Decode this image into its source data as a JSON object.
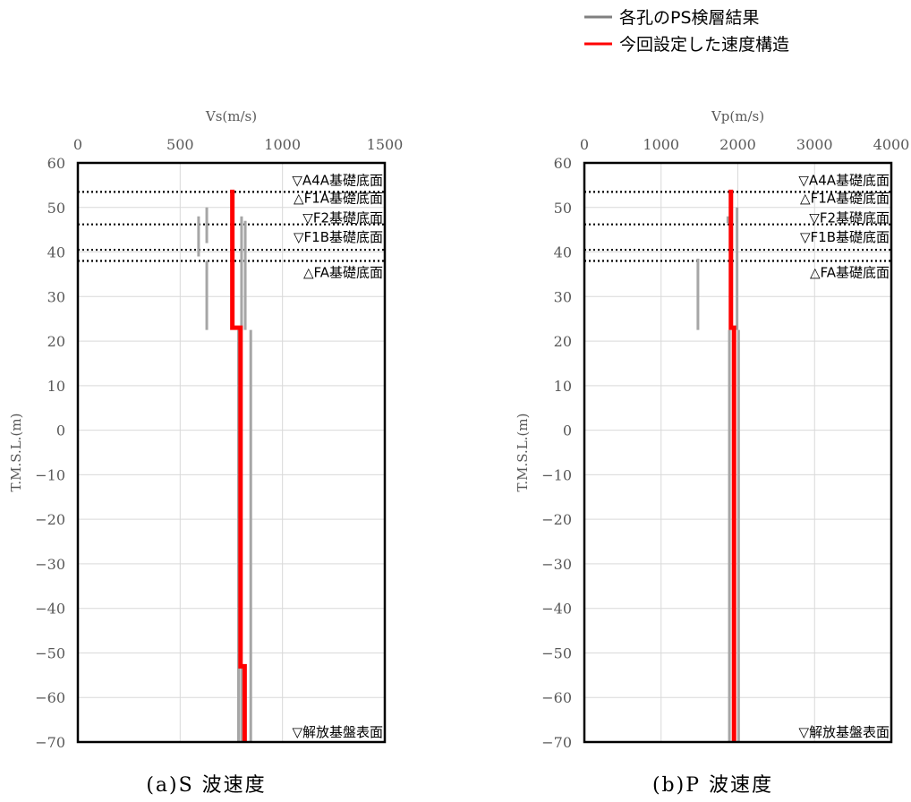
{
  "legend": [
    {
      "label": "各孔のPS検層結果",
      "color": "#808080"
    },
    {
      "label": "今回設定した速度構造",
      "color": "#ff0000"
    }
  ],
  "colors": {
    "measured": "#a6a6a6",
    "model": "#ff0000",
    "grid": "#d9d9d9",
    "axis": "#000000"
  },
  "chart_data": [
    {
      "type": "line",
      "caption": "(a)S 波速度",
      "xlabel": "Vs(m/s)",
      "ylabel": "T.M.S.L.(m)",
      "xlim": [
        0,
        1500
      ],
      "ylim": [
        -70,
        60
      ],
      "xticks": [
        0,
        500,
        1000,
        1500
      ],
      "yticks": [
        60,
        50,
        40,
        30,
        20,
        10,
        0,
        -10,
        -20,
        -30,
        -40,
        -50,
        -60,
        -70
      ],
      "grid": true,
      "reference_levels": [
        {
          "label": "▽A4A基礎底面",
          "y": 53.5
        },
        {
          "label": "△F1A基礎底面",
          "y": 53.5
        },
        {
          "label": "▽F2基礎底面",
          "y": 46.2
        },
        {
          "label": "▽F1B基礎底面",
          "y": 40.5
        },
        {
          "label": "△FA基礎底面",
          "y": 38.0
        },
        {
          "label": "▽解放基盤表面",
          "y": -70
        }
      ],
      "series": [
        {
          "name": "各孔のPS検層結果",
          "segments": [
            {
              "x": 590,
              "y": [
                48,
                39
              ]
            },
            {
              "x": 630,
              "y": [
                50,
                42
              ]
            },
            {
              "x": 630,
              "y": [
                38,
                22.5
              ]
            },
            {
              "x": 800,
              "y": [
                48,
                22.5
              ]
            },
            {
              "x": 818,
              "y": [
                47,
                22.5
              ]
            },
            {
              "x": 845,
              "y": [
                22.5,
                -70
              ]
            },
            {
              "x": 785,
              "y": [
                22.5,
                -70
              ]
            },
            {
              "x": 800,
              "y": [
                -53,
                -70
              ]
            }
          ]
        },
        {
          "name": "今回設定した速度構造",
          "points": [
            [
              755,
              54
            ],
            [
              755,
              23
            ],
            [
              795,
              23
            ],
            [
              795,
              -53
            ],
            [
              815,
              -53
            ],
            [
              815,
              -70
            ]
          ]
        }
      ]
    },
    {
      "type": "line",
      "caption": "(b)P 波速度",
      "xlabel": "Vp(m/s)",
      "ylabel": "T.M.S.L.(m)",
      "xlim": [
        0,
        4000
      ],
      "ylim": [
        -70,
        60
      ],
      "xticks": [
        0,
        1000,
        2000,
        3000,
        4000
      ],
      "yticks": [
        60,
        50,
        40,
        30,
        20,
        10,
        0,
        -10,
        -20,
        -30,
        -40,
        -50,
        -60,
        -70
      ],
      "grid": true,
      "reference_levels": [
        {
          "label": "▽A4A基礎底面",
          "y": 53.5
        },
        {
          "label": "△F1A基礎底面",
          "y": 53.5
        },
        {
          "label": "▽F2基礎底面",
          "y": 46.2
        },
        {
          "label": "▽F1B基礎底面",
          "y": 40.5
        },
        {
          "label": "△FA基礎底面",
          "y": 38.0
        },
        {
          "label": "▽解放基盤表面",
          "y": -70
        }
      ],
      "series": [
        {
          "name": "各孔のPS検層結果",
          "segments": [
            {
              "x": 1480,
              "y": [
                38.5,
                22.5
              ]
            },
            {
              "x": 1870,
              "y": [
                48,
                46.5
              ]
            },
            {
              "x": 1990,
              "y": [
                50,
                22.5
              ]
            },
            {
              "x": 1890,
              "y": [
                22.5,
                -70
              ]
            },
            {
              "x": 1950,
              "y": [
                22.5,
                -70
              ]
            },
            {
              "x": 2010,
              "y": [
                22.5,
                -70
              ]
            }
          ]
        },
        {
          "name": "今回設定した速度構造",
          "points": [
            [
              1910,
              54
            ],
            [
              1910,
              23
            ],
            [
              1950,
              23
            ],
            [
              1950,
              -70
            ]
          ]
        }
      ]
    }
  ]
}
